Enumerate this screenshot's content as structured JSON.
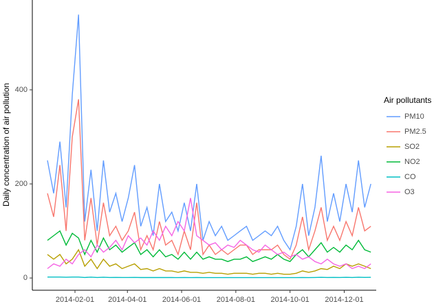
{
  "chart_data": {
    "type": "line",
    "y_label": "Daily concentration of air pollution",
    "legend_title": "Air pollutants",
    "legend_position": "right",
    "grid": false,
    "x": [
      "2014-01-01",
      "2014-01-08",
      "2014-01-15",
      "2014-01-22",
      "2014-01-29",
      "2014-02-05",
      "2014-02-12",
      "2014-02-19",
      "2014-02-26",
      "2014-03-05",
      "2014-03-12",
      "2014-03-19",
      "2014-03-26",
      "2014-04-02",
      "2014-04-09",
      "2014-04-16",
      "2014-04-23",
      "2014-04-30",
      "2014-05-07",
      "2014-05-14",
      "2014-05-21",
      "2014-05-28",
      "2014-06-04",
      "2014-06-11",
      "2014-06-18",
      "2014-06-25",
      "2014-07-02",
      "2014-07-09",
      "2014-07-16",
      "2014-07-23",
      "2014-07-30",
      "2014-08-06",
      "2014-08-13",
      "2014-08-20",
      "2014-08-27",
      "2014-09-03",
      "2014-09-10",
      "2014-09-17",
      "2014-09-24",
      "2014-10-01",
      "2014-10-08",
      "2014-10-15",
      "2014-10-22",
      "2014-10-29",
      "2014-11-05",
      "2014-11-12",
      "2014-11-19",
      "2014-11-26",
      "2014-12-03",
      "2014-12-10",
      "2014-12-17",
      "2014-12-24",
      "2014-12-31"
    ],
    "xlim": [
      "2013-12-15",
      "2015-01-06"
    ],
    "xticks": [
      "2014-02-01",
      "2014-04-01",
      "2014-06-01",
      "2014-08-01",
      "2014-10-01",
      "2014-12-01"
    ],
    "ylim": [
      -26,
      591
    ],
    "yticks": [
      0,
      200,
      400
    ],
    "series": [
      {
        "name": "PM10",
        "color": "#619CFF",
        "values": [
          250,
          180,
          290,
          150,
          390,
          560,
          120,
          230,
          100,
          250,
          140,
          180,
          120,
          170,
          240,
          110,
          150,
          90,
          200,
          120,
          140,
          100,
          160,
          100,
          200,
          80,
          120,
          90,
          110,
          80,
          90,
          100,
          110,
          80,
          90,
          100,
          90,
          110,
          80,
          60,
          110,
          200,
          90,
          150,
          260,
          120,
          180,
          120,
          200,
          140,
          250,
          150,
          200
        ]
      },
      {
        "name": "PM2.5",
        "color": "#F8766D",
        "values": [
          180,
          130,
          240,
          100,
          300,
          380,
          80,
          170,
          70,
          160,
          90,
          110,
          80,
          100,
          140,
          60,
          90,
          60,
          120,
          70,
          80,
          50,
          100,
          60,
          160,
          50,
          70,
          50,
          60,
          50,
          60,
          70,
          70,
          50,
          60,
          60,
          60,
          70,
          50,
          40,
          70,
          130,
          60,
          100,
          150,
          80,
          110,
          80,
          120,
          90,
          150,
          100,
          110
        ]
      },
      {
        "name": "SO2",
        "color": "#B79F00",
        "values": [
          50,
          40,
          50,
          30,
          40,
          60,
          25,
          40,
          20,
          40,
          25,
          30,
          20,
          25,
          30,
          18,
          20,
          15,
          20,
          15,
          15,
          12,
          15,
          12,
          12,
          10,
          12,
          10,
          10,
          8,
          10,
          10,
          10,
          8,
          10,
          10,
          8,
          10,
          8,
          8,
          10,
          15,
          12,
          15,
          20,
          18,
          25,
          20,
          30,
          25,
          30,
          25,
          20
        ]
      },
      {
        "name": "NO2",
        "color": "#00BA38",
        "values": [
          80,
          90,
          100,
          70,
          95,
          85,
          50,
          80,
          55,
          85,
          60,
          70,
          55,
          65,
          75,
          50,
          60,
          45,
          60,
          45,
          50,
          40,
          55,
          40,
          55,
          40,
          45,
          40,
          40,
          35,
          40,
          40,
          45,
          35,
          40,
          45,
          40,
          50,
          40,
          35,
          50,
          60,
          45,
          60,
          75,
          55,
          65,
          55,
          70,
          60,
          80,
          60,
          55
        ]
      },
      {
        "name": "CO",
        "color": "#00BFC4",
        "values": [
          2,
          2,
          2,
          1.5,
          2,
          2,
          1.2,
          1.8,
          1.2,
          1.6,
          1.2,
          1.3,
          1.1,
          1.2,
          1.3,
          1,
          1.1,
          1,
          1.1,
          1,
          1,
          0.9,
          1,
          0.9,
          1,
          0.8,
          0.9,
          0.8,
          0.9,
          0.8,
          0.8,
          0.9,
          0.9,
          0.8,
          0.8,
          0.9,
          0.8,
          0.9,
          0.8,
          0.8,
          0.9,
          1.2,
          0.9,
          1.1,
          1.4,
          1.1,
          1.3,
          1.1,
          1.4,
          1.2,
          1.6,
          1.3,
          1.4
        ]
      },
      {
        "name": "O3",
        "color": "#F564E3",
        "values": [
          20,
          30,
          25,
          40,
          30,
          50,
          60,
          45,
          70,
          55,
          65,
          80,
          60,
          90,
          75,
          85,
          70,
          100,
          80,
          110,
          90,
          120,
          100,
          170,
          90,
          80,
          70,
          75,
          60,
          70,
          65,
          80,
          70,
          60,
          55,
          70,
          60,
          50,
          55,
          45,
          50,
          40,
          45,
          35,
          30,
          40,
          30,
          25,
          30,
          20,
          25,
          20,
          30
        ]
      }
    ]
  }
}
